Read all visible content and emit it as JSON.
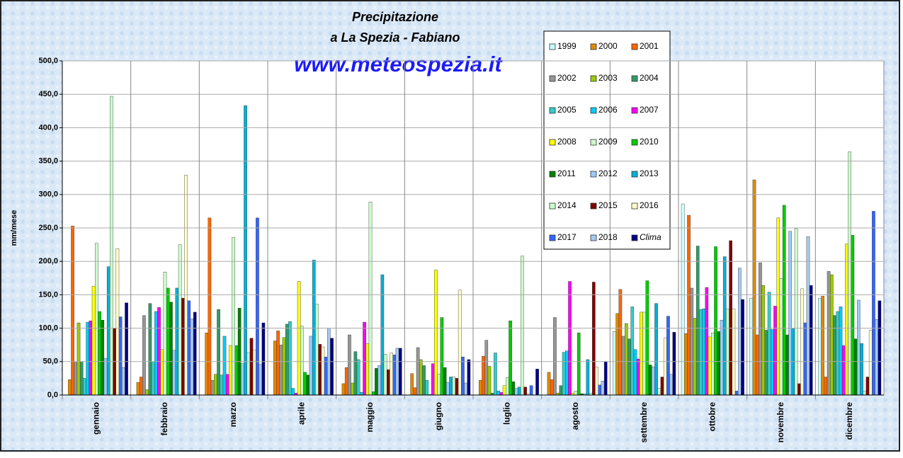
{
  "chart_data": {
    "type": "bar",
    "title": [
      "Precipitazione",
      "a La Spezia - Fabiano"
    ],
    "annotation": "www.meteospezia.it",
    "y_label": "mm/mese",
    "categories": [
      "gennaio",
      "febbraio",
      "marzo",
      "aprile",
      "maggio",
      "giugno",
      "luglio",
      "agosto",
      "settembre",
      "ottobre",
      "novembre",
      "dicembre"
    ],
    "ylim": [
      0,
      500
    ],
    "yticks": [
      {
        "value": 0,
        "label": "0,0"
      },
      {
        "value": 50,
        "label": "50,0"
      },
      {
        "value": 100,
        "label": "100,0"
      },
      {
        "value": 150,
        "label": "150,0"
      },
      {
        "value": 200,
        "label": "200,0"
      },
      {
        "value": 250,
        "label": "250,0"
      },
      {
        "value": 300,
        "label": "300,0"
      },
      {
        "value": 350,
        "label": "350,0"
      },
      {
        "value": 400,
        "label": "400,0"
      },
      {
        "value": 450,
        "label": "450,0"
      },
      {
        "value": 500,
        "label": "500,0"
      }
    ],
    "grid": true,
    "series": [
      {
        "name": "1999",
        "color": "#ccffff",
        "values": [
          null,
          null,
          null,
          null,
          null,
          null,
          null,
          null,
          95,
          286,
          145,
          145
        ]
      },
      {
        "name": "2000",
        "color": "#e08a00",
        "values": [
          23,
          19,
          93,
          81,
          17,
          32,
          22,
          34,
          122,
          92,
          322,
          148
        ]
      },
      {
        "name": "2001",
        "color": "#ff6600",
        "values": [
          253,
          27,
          265,
          96,
          41,
          11,
          58,
          23,
          158,
          269,
          90,
          27
        ]
      },
      {
        "name": "2002",
        "color": "#969696",
        "values": [
          50,
          119,
          22,
          75,
          90,
          71,
          82,
          116,
          88,
          160,
          198,
          185
        ]
      },
      {
        "name": "2003",
        "color": "#99cc00",
        "values": [
          108,
          8,
          31,
          86,
          18,
          53,
          43,
          3,
          107,
          115,
          164,
          180
        ]
      },
      {
        "name": "2004",
        "color": "#339966",
        "values": [
          50,
          137,
          128,
          106,
          65,
          44,
          3,
          14,
          84,
          223,
          97,
          119
        ]
      },
      {
        "name": "2005",
        "color": "#33cccc",
        "values": [
          25,
          50,
          30,
          110,
          53,
          22,
          63,
          64,
          132,
          128,
          154,
          125
        ]
      },
      {
        "name": "2006",
        "color": "#00ccff",
        "values": [
          109,
          125,
          88,
          10,
          4,
          1,
          6,
          66,
          68,
          129,
          98,
          132
        ]
      },
      {
        "name": "2007",
        "color": "#ff00ff",
        "values": [
          111,
          131,
          31,
          3,
          109,
          47,
          4,
          170,
          54,
          161,
          133,
          74
        ]
      },
      {
        "name": "2008",
        "color": "#ffff00",
        "values": [
          163,
          68,
          74,
          170,
          77,
          187,
          14,
          3,
          124,
          87,
          265,
          226
        ]
      },
      {
        "name": "2009",
        "color": "#ccffcc",
        "values": [
          227,
          184,
          236,
          103,
          289,
          31,
          26,
          6,
          124,
          93,
          174,
          364
        ]
      },
      {
        "name": "2010",
        "color": "#00cc00",
        "values": [
          125,
          160,
          74,
          34,
          5,
          116,
          111,
          93,
          171,
          222,
          284,
          239
        ]
      },
      {
        "name": "2011",
        "color": "#008000",
        "values": [
          112,
          139,
          130,
          30,
          40,
          41,
          20,
          2,
          45,
          95,
          90,
          84
        ]
      },
      {
        "name": "2012",
        "color": "#99ccff",
        "values": [
          55,
          67,
          47,
          88,
          44,
          19,
          10,
          2,
          42,
          112,
          245,
          142
        ]
      },
      {
        "name": "2013",
        "color": "#00b0d8",
        "values": [
          192,
          160,
          433,
          202,
          180,
          27,
          12,
          53,
          137,
          207,
          100,
          77
        ]
      },
      {
        "name": "2014",
        "color": "#ccffcc",
        "values": [
          447,
          225,
          63,
          136,
          61,
          27,
          208,
          3,
          10,
          129,
          249,
          6
        ]
      },
      {
        "name": "2015",
        "color": "#800000",
        "values": [
          100,
          145,
          85,
          76,
          38,
          25,
          12,
          169,
          27,
          231,
          17,
          27
        ]
      },
      {
        "name": "2016",
        "color": "#ffffcc",
        "values": [
          219,
          329,
          67,
          72,
          63,
          157,
          2,
          42,
          85,
          129,
          159,
          97
        ]
      },
      {
        "name": "2017",
        "color": "#3366ff",
        "values": [
          117,
          141,
          265,
          57,
          60,
          57,
          14,
          15,
          118,
          6,
          108,
          275
        ]
      },
      {
        "name": "2018",
        "color": "#a6caf0",
        "values": [
          41,
          114,
          46,
          100,
          70,
          18,
          0,
          21,
          31,
          190,
          237,
          113
        ]
      },
      {
        "name": "Clima",
        "color": "#000080",
        "values": [
          138,
          124,
          108,
          85,
          70,
          53,
          39,
          50,
          94,
          143,
          164,
          141
        ]
      }
    ]
  }
}
